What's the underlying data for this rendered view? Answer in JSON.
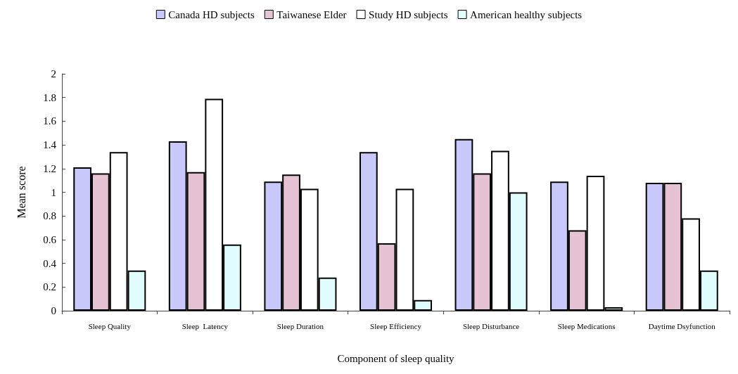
{
  "chart_data": {
    "type": "bar",
    "xlabel": "Component of sleep quality",
    "ylabel": "Mean score",
    "categories": [
      "Sleep Quality",
      "Sleep  Latency",
      "Sleep Duration",
      "Sleep Efficiency",
      "Sleep Disturbance",
      "Sleep Medications",
      "Daytime Dsyfunction"
    ],
    "series": [
      {
        "name": "Canada HD subjects",
        "color": "#c8c8fa",
        "values": [
          1.21,
          1.43,
          1.09,
          1.34,
          1.45,
          1.09,
          1.08
        ]
      },
      {
        "name": "Taiwanese Elder",
        "color": "#e6c3d4",
        "values": [
          1.16,
          1.17,
          1.15,
          0.57,
          1.16,
          0.68,
          1.08
        ]
      },
      {
        "name": "Study HD subjects",
        "color": "#ffffff",
        "values": [
          1.34,
          1.79,
          1.03,
          1.03,
          1.35,
          1.14,
          0.78
        ]
      },
      {
        "name": "American healthy subjects",
        "color": "#e0fcfc",
        "values": [
          0.34,
          0.56,
          0.28,
          0.09,
          1.0,
          0.03,
          0.34
        ]
      }
    ],
    "ylim": [
      0,
      2
    ],
    "yticks": [
      0,
      0.2,
      0.4,
      0.6,
      0.8,
      1,
      1.2,
      1.4,
      1.6,
      1.8,
      2
    ],
    "grid": false,
    "legend": "top"
  }
}
